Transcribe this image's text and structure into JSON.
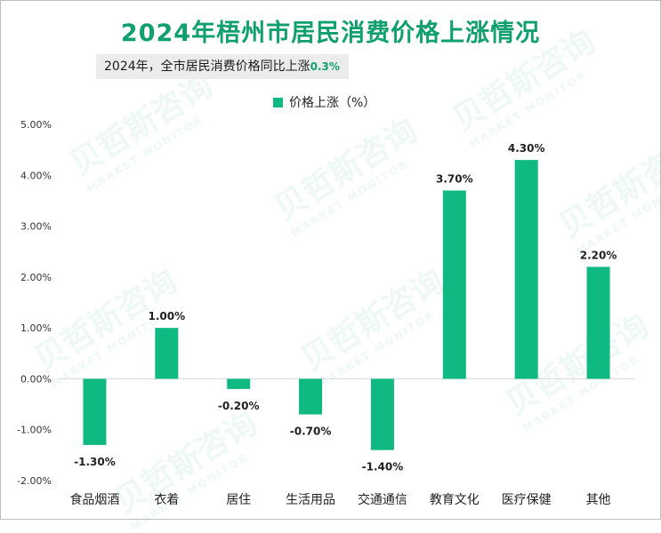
{
  "title": "2024年梧州市居民消费价格上涨情况",
  "subtitle": {
    "text": "2024年，全市居民消费价格同比上涨",
    "value": "0.3%"
  },
  "watermark": {
    "cn": "贝哲斯咨询",
    "en": "MARKET MONITOR"
  },
  "colors": {
    "bar": "#10b981",
    "title": "#10a06e",
    "grid": "#d9d9d9"
  },
  "chart_data": {
    "type": "bar",
    "title": "2024年梧州市居民消费价格上涨情况",
    "categories": [
      "食品烟酒",
      "衣着",
      "居住",
      "生活用品",
      "交通通信",
      "教育文化",
      "医疗保健",
      "其他"
    ],
    "series": [
      {
        "name": "价格上涨（%）",
        "values": [
          -1.3,
          1.0,
          -0.2,
          -0.7,
          -1.4,
          3.7,
          4.3,
          2.2
        ],
        "labels": [
          "-1.30%",
          "1.00%",
          "-0.20%",
          "-0.70%",
          "-1.40%",
          "3.70%",
          "4.30%",
          "2.20%"
        ]
      }
    ],
    "yticks": [
      5.0,
      4.0,
      3.0,
      2.0,
      1.0,
      0.0,
      -1.0,
      -2.0
    ],
    "ytick_labels": [
      "5.00%",
      "4.00%",
      "3.00%",
      "2.00%",
      "1.00%",
      "0.00%",
      "-1.00%",
      "-2.00%"
    ],
    "ylim": [
      -2.0,
      5.0
    ],
    "xlabel": "",
    "ylabel": "",
    "legend_position": "top-center"
  }
}
